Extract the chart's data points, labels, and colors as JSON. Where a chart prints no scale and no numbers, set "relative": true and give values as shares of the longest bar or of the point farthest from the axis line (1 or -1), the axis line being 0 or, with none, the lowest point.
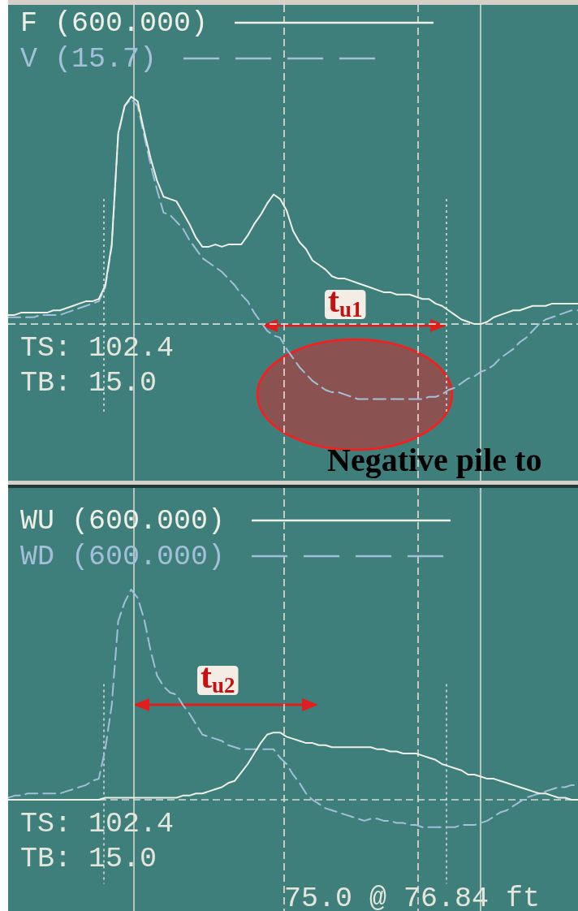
{
  "chart_data": [
    {
      "type": "line",
      "relative": true,
      "legend": "top left",
      "tick_labels": false,
      "marker": "none",
      "categories": [
        null,
        null,
        null,
        null,
        null,
        null,
        null,
        null,
        null,
        null,
        null,
        null,
        null,
        null,
        null,
        null,
        null,
        null,
        null,
        null,
        null,
        null,
        null,
        null,
        null,
        null,
        null,
        null,
        null,
        null,
        null,
        null,
        null,
        null,
        null,
        null,
        null,
        null,
        null,
        null,
        null,
        null,
        null,
        null,
        null,
        null,
        null,
        null,
        null,
        null,
        null,
        null,
        null,
        null,
        null,
        null,
        null,
        null,
        null,
        null,
        null,
        null,
        null,
        null,
        null,
        null,
        null,
        null,
        null,
        null,
        null,
        null,
        null,
        null,
        null,
        null,
        null,
        null,
        null,
        null,
        null,
        null,
        null,
        null,
        null,
        null,
        null,
        null,
        null
      ],
      "series": [
        {
          "name": "F (600.000)",
          "color": "#eef0e6",
          "line_style": "solid",
          "values": [
            0.04,
            0.04,
            0.05,
            0.05,
            0.05,
            0.05,
            0.05,
            0.06,
            0.06,
            0.07,
            0.08,
            0.09,
            0.1,
            0.1,
            0.11,
            0.17,
            0.35,
            0.84,
            0.96,
            1,
            0.98,
            0.85,
            0.73,
            0.63,
            0.56,
            0.55,
            0.54,
            0.49,
            0.44,
            0.38,
            0.34,
            0.34,
            0.35,
            0.34,
            0.35,
            0.35,
            0.35,
            0.39,
            0.44,
            0.48,
            0.53,
            0.57,
            0.55,
            0.5,
            0.41,
            0.36,
            0.33,
            0.28,
            0.26,
            0.24,
            0.21,
            0.2,
            0.2,
            0.19,
            0.18,
            0.17,
            0.16,
            0.15,
            0.14,
            0.14,
            0.13,
            0.13,
            0.13,
            0.12,
            0.11,
            0.11,
            0.09,
            0.08,
            0.06,
            0.04,
            0.02,
            0.01,
            0,
            0,
            0.01,
            0.03,
            0.04,
            0.05,
            0.06,
            0.06,
            0.07,
            0.08,
            0.08,
            0.08,
            0.09,
            0.09,
            0.09,
            0.09,
            0.09
          ]
        },
        {
          "name": "V (15.7)",
          "color": "#a3bfd9",
          "line_style": "dashed",
          "values": [
            0.03,
            0.03,
            0.03,
            0.03,
            0.03,
            0.04,
            0.04,
            0.04,
            0.04,
            0.05,
            0.06,
            0.07,
            0.08,
            0.09,
            0.1,
            0.16,
            0.34,
            0.83,
            0.96,
            0.99,
            0.96,
            0.83,
            0.7,
            0.59,
            0.49,
            0.48,
            0.45,
            0.42,
            0.37,
            0.33,
            0.29,
            0.27,
            0.25,
            0.23,
            0.2,
            0.17,
            0.13,
            0.1,
            0.05,
            0.01,
            -0.03,
            -0.05,
            -0.06,
            -0.11,
            -0.15,
            -0.19,
            -0.22,
            -0.25,
            -0.27,
            -0.29,
            -0.3,
            -0.3,
            -0.31,
            -0.32,
            -0.33,
            -0.33,
            -0.33,
            -0.33,
            -0.33,
            -0.33,
            -0.33,
            -0.33,
            -0.33,
            -0.33,
            -0.33,
            -0.32,
            -0.32,
            -0.31,
            -0.29,
            -0.28,
            -0.26,
            -0.24,
            -0.23,
            -0.21,
            -0.2,
            -0.18,
            -0.15,
            -0.13,
            -0.11,
            -0.08,
            -0.06,
            -0.03,
            0,
            0.02,
            0.03,
            0.04,
            0.05,
            0.06,
            0.06
          ]
        }
      ],
      "ref_lines": [
        {
          "axis": "y",
          "value": 0,
          "line_style": "dashed",
          "color": "#d4dcd6"
        }
      ],
      "annotations": [
        "TS: 102.4",
        "TB: 15.0",
        "t$_{u1}$",
        "Negative pile to"
      ]
    },
    {
      "type": "line",
      "relative": true,
      "legend": "top left",
      "tick_labels": false,
      "marker": "none",
      "categories": [
        null,
        null,
        null,
        null,
        null,
        null,
        null,
        null,
        null,
        null,
        null,
        null,
        null,
        null,
        null,
        null,
        null,
        null,
        null,
        null,
        null,
        null,
        null,
        null,
        null,
        null,
        null,
        null,
        null,
        null,
        null,
        null,
        null,
        null,
        null,
        null,
        null,
        null,
        null,
        null,
        null,
        null,
        null,
        null,
        null,
        null,
        null,
        null,
        null,
        null,
        null,
        null,
        null,
        null,
        null,
        null,
        null,
        null,
        null,
        null,
        null,
        null,
        null,
        null,
        null,
        null,
        null,
        null,
        null,
        null,
        null,
        null,
        null,
        null,
        null,
        null,
        null,
        null,
        null,
        null,
        null,
        null,
        null,
        null,
        null,
        null,
        null,
        null,
        null
      ],
      "series": [
        {
          "name": "WU (600.000)",
          "color": "#eef0e6",
          "line_style": "solid",
          "values": [
            0,
            0,
            0,
            0,
            0,
            0,
            0,
            0,
            0,
            0,
            0,
            0,
            0,
            0,
            0,
            0.01,
            0.01,
            0.01,
            0.01,
            0.01,
            0.01,
            0.01,
            0.01,
            0.01,
            0.01,
            0.01,
            0.01,
            0.02,
            0.02,
            0.03,
            0.03,
            0.04,
            0.05,
            0.06,
            0.08,
            0.09,
            0.13,
            0.17,
            0.22,
            0.27,
            0.31,
            0.32,
            0.32,
            0.3,
            0.29,
            0.28,
            0.27,
            0.27,
            0.26,
            0.26,
            0.25,
            0.25,
            0.25,
            0.25,
            0.25,
            0.25,
            0.25,
            0.24,
            0.24,
            0.23,
            0.23,
            0.22,
            0.22,
            0.22,
            0.21,
            0.2,
            0.19,
            0.17,
            0.16,
            0.15,
            0.14,
            0.12,
            0.12,
            0.11,
            0.1,
            0.1,
            0.09,
            0.08,
            0.07,
            0.06,
            0.05,
            0.04,
            0.03,
            0.03,
            0.02,
            0.01,
            0.01,
            0,
            0
          ]
        },
        {
          "name": "WD (600.000)",
          "color": "#a3bfd9",
          "line_style": "dashed",
          "values": [
            0.01,
            0.02,
            0.02,
            0.03,
            0.03,
            0.03,
            0.03,
            0.03,
            0.03,
            0.04,
            0.05,
            0.06,
            0.07,
            0.09,
            0.1,
            0.24,
            0.45,
            0.85,
            0.94,
            1,
            0.96,
            0.86,
            0.71,
            0.59,
            0.54,
            0.51,
            0.5,
            0.45,
            0.41,
            0.36,
            0.31,
            0.3,
            0.29,
            0.28,
            0.26,
            0.25,
            0.24,
            0.24,
            0.24,
            0.24,
            0.24,
            0.24,
            0.2,
            0.17,
            0.12,
            0.08,
            0.03,
            0,
            -0.02,
            -0.04,
            -0.05,
            -0.06,
            -0.07,
            -0.08,
            -0.09,
            -0.1,
            -0.09,
            -0.09,
            -0.1,
            -0.1,
            -0.11,
            -0.11,
            -0.12,
            -0.12,
            -0.13,
            -0.13,
            -0.13,
            -0.13,
            -0.13,
            -0.13,
            -0.12,
            -0.12,
            -0.12,
            -0.11,
            -0.1,
            -0.08,
            -0.06,
            -0.05,
            -0.03,
            -0.01,
            0.01,
            0.02,
            0.03,
            0.04,
            0.05,
            0.06,
            0.06,
            0.07,
            0.07
          ]
        }
      ],
      "ref_lines": [
        {
          "axis": "y",
          "value": 0,
          "line_style": "dashed",
          "color": "#d4dcd6"
        }
      ],
      "annotations": [
        "TS: 102.4",
        "TB: 15.0",
        "t$_{u2}$",
        "75.0 @ 76.84 ft"
      ]
    }
  ]
}
